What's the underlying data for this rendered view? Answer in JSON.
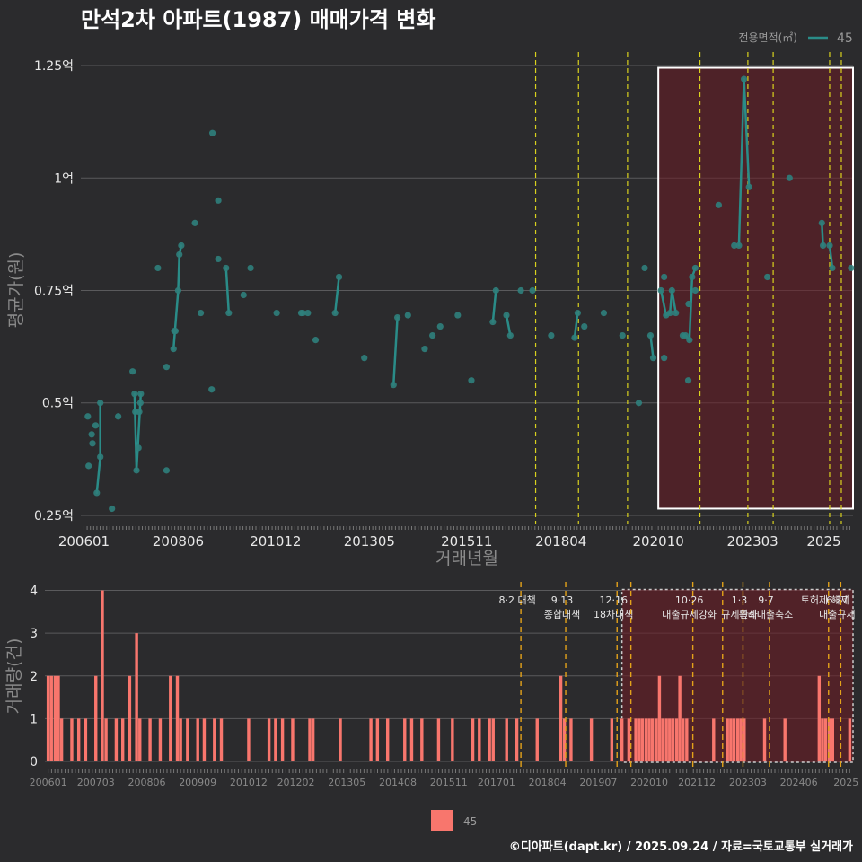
{
  "chart_data": [
    {
      "type": "line",
      "title": "만석2차 아파트(1987) 매매가격 변화",
      "xlabel": "거래년월",
      "ylabel": "평균가(원)",
      "x_ticks": [
        "200601",
        "200806",
        "201012",
        "201305",
        "201511",
        "201804",
        "202010",
        "202303",
        "2025"
      ],
      "y_ticks": [
        {
          "value": 0.25,
          "label": "0.25억"
        },
        {
          "value": 0.5,
          "label": "0.5억"
        },
        {
          "value": 0.75,
          "label": "0.75억"
        },
        {
          "value": 1.0,
          "label": "1억"
        },
        {
          "value": 1.25,
          "label": "1.25억"
        }
      ],
      "ylim": [
        0.23,
        1.28
      ],
      "xlim": [
        2005.92,
        2025.75
      ],
      "legend_title": "전용면적(㎡)",
      "legend_entry": "45",
      "series_color": "#2a8c88",
      "event_lines_x": [
        2017.6,
        2018.7,
        2019.96,
        2021.82,
        2023.05,
        2023.7,
        2025.15,
        2025.45
      ],
      "highlight_x": [
        2020.75,
        2025.75
      ],
      "highlight_y": [
        0.265,
        1.245
      ],
      "cancelled_points": [
        {
          "x": 2020.58,
          "y": 0.58
        },
        {
          "x": 2022.58,
          "y": 0.85
        }
      ],
      "points": [
        [
          2006.1,
          0.47
        ],
        [
          2006.12,
          0.36
        ],
        [
          2006.2,
          0.43
        ],
        [
          2006.22,
          0.41
        ],
        [
          2006.3,
          0.45
        ],
        [
          2006.33,
          0.3
        ],
        [
          2006.42,
          0.5
        ],
        [
          2006.42,
          0.38
        ],
        [
          2006.72,
          0.265
        ],
        [
          2006.88,
          0.47
        ],
        [
          2007.25,
          0.57
        ],
        [
          2007.3,
          0.52
        ],
        [
          2007.32,
          0.48
        ],
        [
          2007.35,
          0.35
        ],
        [
          2007.4,
          0.4
        ],
        [
          2007.42,
          0.48
        ],
        [
          2007.45,
          0.5
        ],
        [
          2007.46,
          0.52
        ],
        [
          2007.9,
          0.8
        ],
        [
          2008.12,
          0.35
        ],
        [
          2008.12,
          0.58
        ],
        [
          2008.3,
          0.62
        ],
        [
          2008.32,
          0.66
        ],
        [
          2008.35,
          0.66
        ],
        [
          2008.42,
          0.75
        ],
        [
          2008.45,
          0.83
        ],
        [
          2008.5,
          0.85
        ],
        [
          2008.85,
          0.9
        ],
        [
          2009.0,
          0.7
        ],
        [
          2009.28,
          0.53
        ],
        [
          2009.3,
          1.1
        ],
        [
          2009.45,
          0.95
        ],
        [
          2009.45,
          0.82
        ],
        [
          2009.65,
          0.8
        ],
        [
          2009.72,
          0.7
        ],
        [
          2010.1,
          0.74
        ],
        [
          2010.28,
          0.8
        ],
        [
          2010.95,
          0.7
        ],
        [
          2011.58,
          0.7
        ],
        [
          2011.62,
          0.7
        ],
        [
          2011.75,
          0.7
        ],
        [
          2011.95,
          0.64
        ],
        [
          2012.45,
          0.7
        ],
        [
          2012.55,
          0.78
        ],
        [
          2013.2,
          0.6
        ],
        [
          2013.95,
          0.54
        ],
        [
          2014.05,
          0.69
        ],
        [
          2014.32,
          0.695
        ],
        [
          2014.75,
          0.62
        ],
        [
          2014.95,
          0.65
        ],
        [
          2015.15,
          0.67
        ],
        [
          2015.6,
          0.695
        ],
        [
          2015.95,
          0.55
        ],
        [
          2016.5,
          0.68
        ],
        [
          2016.58,
          0.75
        ],
        [
          2016.85,
          0.695
        ],
        [
          2016.95,
          0.65
        ],
        [
          2017.22,
          0.75
        ],
        [
          2017.52,
          0.75
        ],
        [
          2018.0,
          0.65
        ],
        [
          2018.6,
          0.645
        ],
        [
          2018.68,
          0.7
        ],
        [
          2018.85,
          0.67
        ],
        [
          2019.35,
          0.7
        ],
        [
          2019.83,
          0.65
        ],
        [
          2020.25,
          0.5
        ],
        [
          2020.4,
          0.8
        ],
        [
          2020.55,
          0.65
        ],
        [
          2020.62,
          0.6
        ],
        [
          2020.82,
          0.75
        ],
        [
          2020.9,
          0.78
        ],
        [
          2020.95,
          0.695
        ],
        [
          2020.9,
          0.6
        ],
        [
          2021.05,
          0.7
        ],
        [
          2021.1,
          0.75
        ],
        [
          2021.2,
          0.7
        ],
        [
          2021.38,
          0.65
        ],
        [
          2021.45,
          0.65
        ],
        [
          2021.52,
          0.55
        ],
        [
          2021.53,
          0.72
        ],
        [
          2021.55,
          0.64
        ],
        [
          2021.62,
          0.78
        ],
        [
          2021.7,
          0.8
        ],
        [
          2021.7,
          0.75
        ],
        [
          2022.3,
          0.94
        ],
        [
          2022.7,
          0.85
        ],
        [
          2022.82,
          0.85
        ],
        [
          2022.95,
          1.22
        ],
        [
          2023.08,
          0.98
        ],
        [
          2023.55,
          0.78
        ],
        [
          2024.12,
          1.0
        ],
        [
          2024.95,
          0.9
        ],
        [
          2024.98,
          0.85
        ],
        [
          2025.15,
          0.85
        ],
        [
          2025.22,
          0.8
        ],
        [
          2025.7,
          0.8
        ]
      ],
      "segments": [
        [
          [
            2006.33,
            0.3
          ],
          [
            2006.42,
            0.38
          ]
        ],
        [
          [
            2006.42,
            0.38
          ],
          [
            2006.42,
            0.5
          ]
        ],
        [
          [
            2007.35,
            0.35
          ],
          [
            2007.3,
            0.52
          ]
        ],
        [
          [
            2007.35,
            0.35
          ],
          [
            2007.46,
            0.52
          ]
        ],
        [
          [
            2008.3,
            0.62
          ],
          [
            2008.42,
            0.75
          ]
        ],
        [
          [
            2008.42,
            0.75
          ],
          [
            2008.45,
            0.83
          ]
        ],
        [
          [
            2008.45,
            0.83
          ],
          [
            2008.5,
            0.85
          ]
        ],
        [
          [
            2009.65,
            0.8
          ],
          [
            2009.72,
            0.7
          ]
        ],
        [
          [
            2012.45,
            0.7
          ],
          [
            2012.55,
            0.78
          ]
        ],
        [
          [
            2013.95,
            0.54
          ],
          [
            2014.05,
            0.69
          ]
        ],
        [
          [
            2016.5,
            0.68
          ],
          [
            2016.58,
            0.75
          ]
        ],
        [
          [
            2016.85,
            0.695
          ],
          [
            2016.95,
            0.65
          ]
        ],
        [
          [
            2018.6,
            0.645
          ],
          [
            2018.68,
            0.7
          ]
        ],
        [
          [
            2020.55,
            0.65
          ],
          [
            2020.62,
            0.6
          ]
        ],
        [
          [
            2020.82,
            0.75
          ],
          [
            2020.95,
            0.695
          ]
        ],
        [
          [
            2020.95,
            0.695
          ],
          [
            2021.05,
            0.7
          ]
        ],
        [
          [
            2021.05,
            0.7
          ],
          [
            2021.1,
            0.75
          ]
        ],
        [
          [
            2021.1,
            0.75
          ],
          [
            2021.2,
            0.7
          ]
        ],
        [
          [
            2021.38,
            0.65
          ],
          [
            2021.45,
            0.65
          ]
        ],
        [
          [
            2021.45,
            0.65
          ],
          [
            2021.55,
            0.64
          ]
        ],
        [
          [
            2021.55,
            0.64
          ],
          [
            2021.62,
            0.78
          ]
        ],
        [
          [
            2021.62,
            0.78
          ],
          [
            2021.7,
            0.8
          ]
        ],
        [
          [
            2022.82,
            0.85
          ],
          [
            2022.95,
            1.22
          ]
        ],
        [
          [
            2022.95,
            1.22
          ],
          [
            2023.08,
            0.98
          ]
        ],
        [
          [
            2024.95,
            0.9
          ],
          [
            2024.98,
            0.85
          ]
        ],
        [
          [
            2025.15,
            0.85
          ],
          [
            2025.22,
            0.8
          ]
        ]
      ]
    },
    {
      "type": "bar",
      "ylabel": "거래량(건)",
      "ylim": [
        0,
        4.2
      ],
      "xlim": [
        2005.92,
        2025.75
      ],
      "y_ticks": [
        0,
        1,
        2,
        3,
        4
      ],
      "x_ticks": [
        "200601",
        "200703",
        "200806",
        "200909",
        "201012",
        "201202",
        "201305",
        "201408",
        "201511",
        "201701",
        "201804",
        "201907",
        "202010",
        "202112",
        "202303",
        "202406",
        "2025"
      ],
      "bar_color": "#f8766d",
      "legend_entry": "45",
      "highlight_x": [
        2020.08,
        2025.75
      ],
      "event_lines": [
        {
          "x": 2017.6,
          "color": "#e3a21a",
          "lines": [
            "8·2 대책"
          ]
        },
        {
          "x": 2018.7,
          "color": "#e3a21a",
          "lines": [
            "9·13",
            "종합대책"
          ]
        },
        {
          "x": 2019.96,
          "color": "#e3a21a",
          "lines": [
            "12·16",
            "18차대책"
          ]
        },
        {
          "x": 2020.3,
          "color": "#e3a21a",
          "lines": []
        },
        {
          "x": 2021.82,
          "color": "#e3a21a",
          "lines": [
            "10·26",
            "대출규제강화"
          ]
        },
        {
          "x": 2022.55,
          "color": "#e3a21a",
          "lines": []
        },
        {
          "x": 2023.05,
          "color": "#e3a21a",
          "lines": [
            "1·3",
            "규제완화"
          ]
        },
        {
          "x": 2023.7,
          "color": "#e3a21a",
          "lines": [
            "9·7",
            "특례대출축소"
          ]
        },
        {
          "x": 2025.15,
          "color": "#e3a21a",
          "lines": [
            "토허제 해제"
          ]
        },
        {
          "x": 2025.45,
          "color": "#e3a21a",
          "lines": [
            "6·27",
            "대출규제"
          ]
        }
      ],
      "bars": [
        [
          2006.0,
          2
        ],
        [
          2006.08,
          2
        ],
        [
          2006.17,
          2
        ],
        [
          2006.25,
          2
        ],
        [
          2006.33,
          1
        ],
        [
          2006.58,
          1
        ],
        [
          2006.75,
          1
        ],
        [
          2006.92,
          1
        ],
        [
          2007.17,
          2
        ],
        [
          2007.33,
          4
        ],
        [
          2007.42,
          1
        ],
        [
          2007.67,
          1
        ],
        [
          2007.83,
          1
        ],
        [
          2008.0,
          2
        ],
        [
          2008.17,
          3
        ],
        [
          2008.25,
          1
        ],
        [
          2008.5,
          1
        ],
        [
          2008.75,
          1
        ],
        [
          2009.0,
          2
        ],
        [
          2009.17,
          2
        ],
        [
          2009.25,
          1
        ],
        [
          2009.42,
          1
        ],
        [
          2009.67,
          1
        ],
        [
          2009.83,
          1
        ],
        [
          2010.08,
          1
        ],
        [
          2010.25,
          1
        ],
        [
          2010.92,
          1
        ],
        [
          2011.42,
          1
        ],
        [
          2011.58,
          1
        ],
        [
          2011.75,
          1
        ],
        [
          2012.0,
          1
        ],
        [
          2012.42,
          1
        ],
        [
          2012.5,
          1
        ],
        [
          2013.17,
          1
        ],
        [
          2013.92,
          1
        ],
        [
          2014.08,
          1
        ],
        [
          2014.33,
          1
        ],
        [
          2014.75,
          1
        ],
        [
          2014.92,
          1
        ],
        [
          2015.17,
          1
        ],
        [
          2015.58,
          1
        ],
        [
          2015.92,
          1
        ],
        [
          2016.42,
          1
        ],
        [
          2016.58,
          1
        ],
        [
          2016.83,
          1
        ],
        [
          2016.92,
          1
        ],
        [
          2017.25,
          1
        ],
        [
          2017.5,
          1
        ],
        [
          2018.0,
          1
        ],
        [
          2018.58,
          2
        ],
        [
          2018.67,
          1
        ],
        [
          2018.83,
          1
        ],
        [
          2019.33,
          1
        ],
        [
          2019.83,
          1
        ],
        [
          2020.08,
          1
        ],
        [
          2020.25,
          1
        ],
        [
          2020.42,
          1
        ],
        [
          2020.5,
          1
        ],
        [
          2020.58,
          1
        ],
        [
          2020.67,
          1
        ],
        [
          2020.75,
          1
        ],
        [
          2020.83,
          1
        ],
        [
          2020.92,
          1
        ],
        [
          2021.0,
          2
        ],
        [
          2021.08,
          1
        ],
        [
          2021.17,
          1
        ],
        [
          2021.25,
          1
        ],
        [
          2021.33,
          1
        ],
        [
          2021.42,
          1
        ],
        [
          2021.5,
          2
        ],
        [
          2021.58,
          1
        ],
        [
          2021.67,
          1
        ],
        [
          2022.33,
          1
        ],
        [
          2022.67,
          1
        ],
        [
          2022.75,
          1
        ],
        [
          2022.83,
          1
        ],
        [
          2022.92,
          1
        ],
        [
          2023.0,
          1
        ],
        [
          2023.08,
          1
        ],
        [
          2023.58,
          1
        ],
        [
          2024.08,
          1
        ],
        [
          2024.92,
          2
        ],
        [
          2025.0,
          1
        ],
        [
          2025.08,
          1
        ],
        [
          2025.17,
          1
        ],
        [
          2025.25,
          1
        ],
        [
          2025.67,
          1
        ]
      ]
    }
  ],
  "footer": "©디아파트(dapt.kr) / 2025.09.24 / 자료=국토교통부 실거래가"
}
